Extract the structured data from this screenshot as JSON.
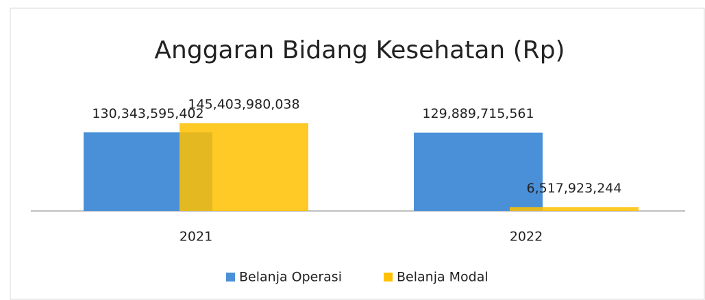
{
  "chart_data": {
    "type": "bar",
    "title": "Anggaran Bidang Kesehatan (Rp)",
    "categories": [
      "2021",
      "2022"
    ],
    "series": [
      {
        "name": "Belanja Operasi",
        "color": "#4a90d9",
        "values": [
          130343595402,
          129889715561
        ],
        "value_labels": [
          "130,343,595,402",
          "129,889,715,561"
        ]
      },
      {
        "name": "Belanja Modal",
        "color": "#ffc000",
        "values": [
          145403980038,
          6517923244
        ],
        "value_labels": [
          "145,403,980,038",
          "6,517,923,244"
        ]
      }
    ],
    "legend": "bottom"
  }
}
